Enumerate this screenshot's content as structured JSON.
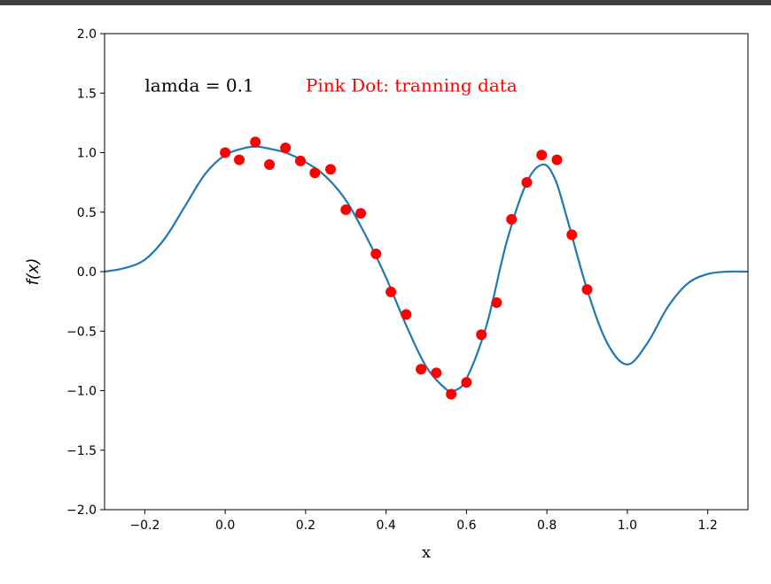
{
  "chart_data": {
    "type": "line+scatter",
    "xlabel": "x",
    "ylabel": "f(x)",
    "xlim": [
      -0.3,
      1.3
    ],
    "ylim": [
      -2.0,
      2.0
    ],
    "xticks": [
      -0.2,
      0.0,
      0.2,
      0.4,
      0.6,
      0.8,
      1.0,
      1.2
    ],
    "xtick_labels": [
      "−0.2",
      "0.0",
      "0.2",
      "0.4",
      "0.6",
      "0.8",
      "1.0",
      "1.2"
    ],
    "yticks": [
      -2.0,
      -1.5,
      -1.0,
      -0.5,
      0.0,
      0.5,
      1.0,
      1.5,
      2.0
    ],
    "ytick_labels": [
      "−2.0",
      "−1.5",
      "−1.0",
      "−0.5",
      "0.0",
      "0.5",
      "1.0",
      "1.5",
      "2.0"
    ],
    "grid": false,
    "annotations": [
      {
        "text": "lamda = 0.1",
        "x": -0.2,
        "y": 1.5,
        "color": "#000000"
      },
      {
        "text": "Pink Dot: tranning data",
        "x": 0.2,
        "y": 1.5,
        "color": "#ff0000"
      }
    ],
    "curve": {
      "color": "#1f77b4",
      "x": [
        -0.3,
        -0.25,
        -0.2,
        -0.15,
        -0.1,
        -0.05,
        0.0,
        0.05,
        0.08,
        0.1,
        0.15,
        0.2,
        0.25,
        0.3,
        0.35,
        0.4,
        0.45,
        0.5,
        0.55,
        0.57,
        0.6,
        0.65,
        0.7,
        0.75,
        0.79,
        0.82,
        0.85,
        0.9,
        0.95,
        1.0,
        1.05,
        1.1,
        1.15,
        1.2,
        1.25,
        1.3
      ],
      "y": [
        0.0,
        0.03,
        0.1,
        0.28,
        0.55,
        0.82,
        0.98,
        1.04,
        1.05,
        1.04,
        1.0,
        0.92,
        0.8,
        0.6,
        0.3,
        -0.05,
        -0.45,
        -0.8,
        -0.99,
        -1.0,
        -0.9,
        -0.45,
        0.25,
        0.75,
        0.9,
        0.78,
        0.45,
        -0.15,
        -0.6,
        -0.78,
        -0.6,
        -0.3,
        -0.1,
        -0.02,
        0.0,
        0.0
      ]
    },
    "training_data": {
      "color": "#ff0000",
      "x": [
        0.0,
        0.035,
        0.075,
        0.11,
        0.15,
        0.187,
        0.223,
        0.262,
        0.3,
        0.337,
        0.375,
        0.412,
        0.45,
        0.487,
        0.525,
        0.562,
        0.6,
        0.637,
        0.675,
        0.712,
        0.75,
        0.787,
        0.825,
        0.862,
        0.9
      ],
      "y": [
        1.0,
        0.94,
        1.09,
        0.9,
        1.04,
        0.93,
        0.83,
        0.86,
        0.52,
        0.49,
        0.15,
        -0.17,
        -0.36,
        -0.82,
        -0.85,
        -1.03,
        -0.93,
        -0.53,
        -0.26,
        0.44,
        0.75,
        0.98,
        0.94,
        0.31,
        -0.15
      ]
    }
  }
}
